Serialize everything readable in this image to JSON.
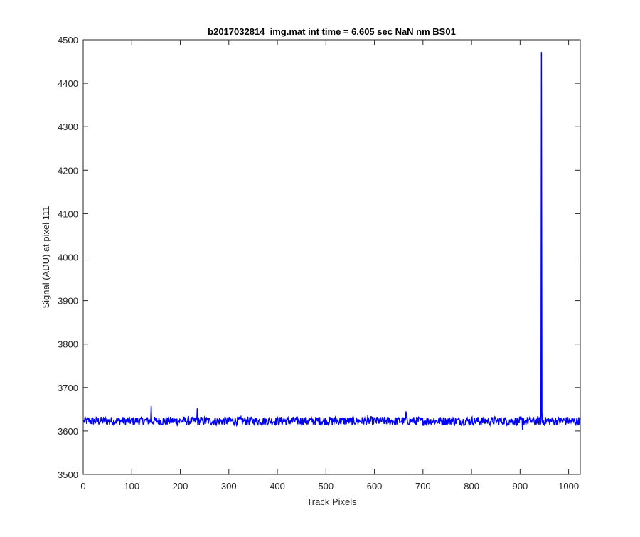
{
  "chart_data": {
    "type": "line",
    "title": "b2017032814_img.mat int time = 6.605 sec  NaN nm BS01",
    "xlabel": "Track Pixels",
    "ylabel": "Signal (ADU) at pixel 111",
    "xlim": [
      0,
      1024
    ],
    "ylim": [
      3500,
      4500
    ],
    "xticks": [
      0,
      100,
      200,
      300,
      400,
      500,
      600,
      700,
      800,
      900,
      1000
    ],
    "yticks": [
      3500,
      3600,
      3700,
      3800,
      3900,
      4000,
      4100,
      4200,
      4300,
      4400,
      4500
    ],
    "grid": false,
    "legend": "none",
    "line_color": "#0000ff",
    "series": [
      {
        "baseline": 3623,
        "noise_amplitude": 10,
        "spike": {
          "x": 944,
          "y": 4472
        },
        "notable_points": [
          {
            "x": 140,
            "y": 3657
          },
          {
            "x": 235,
            "y": 3652
          },
          {
            "x": 665,
            "y": 3645
          },
          {
            "x": 905,
            "y": 3603
          },
          {
            "x": 945,
            "y": 3640
          }
        ]
      }
    ]
  }
}
